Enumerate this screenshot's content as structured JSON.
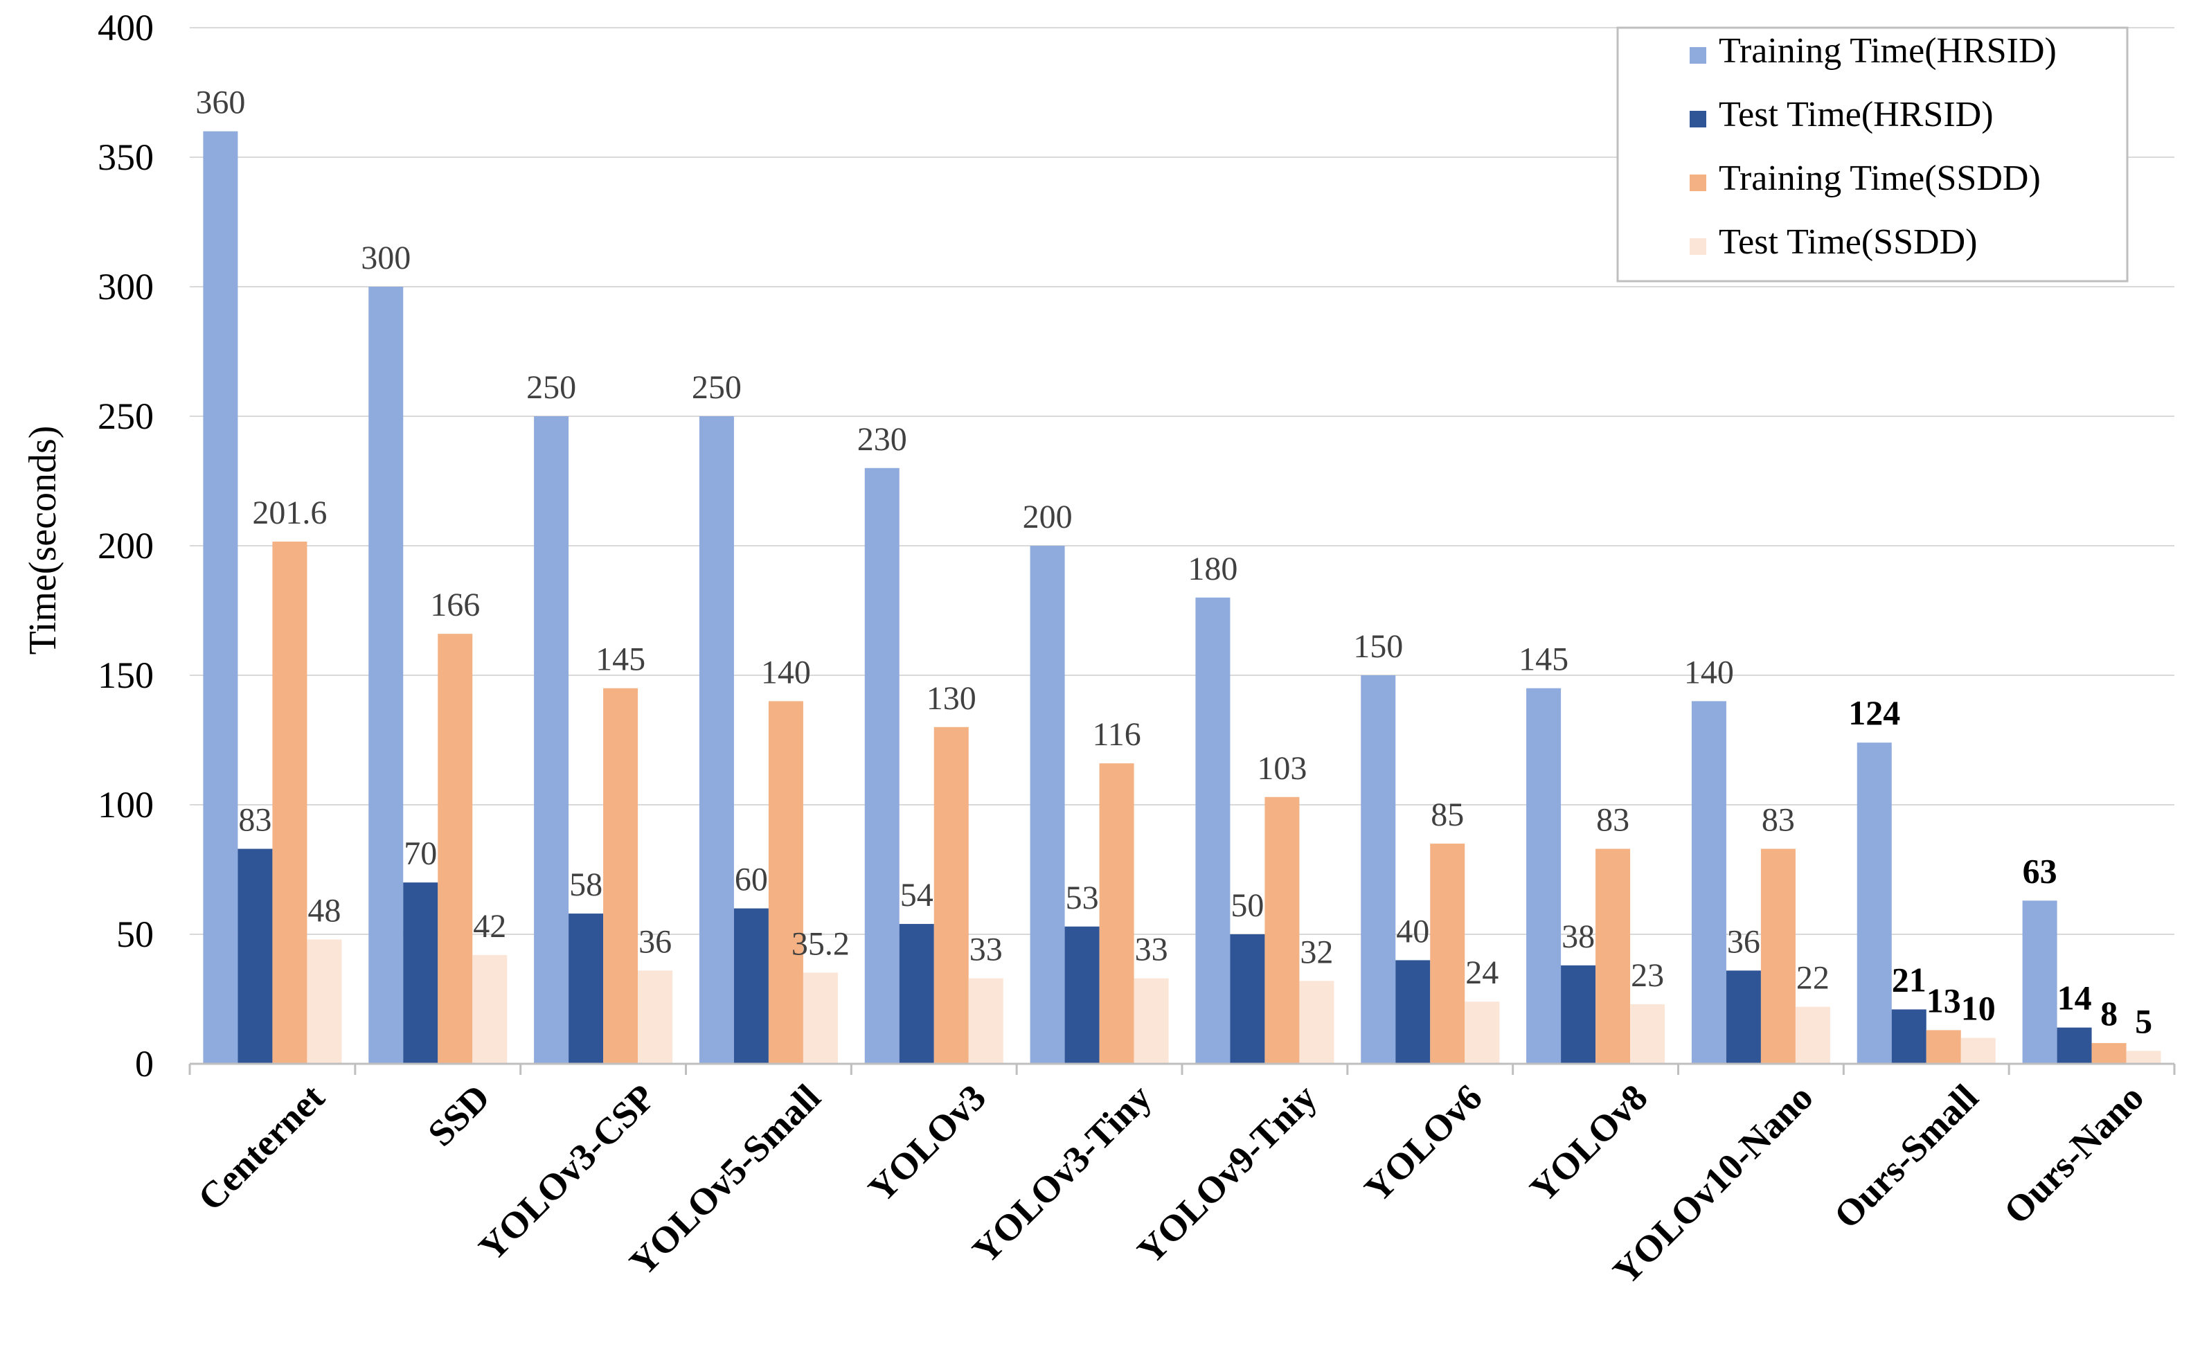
{
  "chart_data": {
    "type": "bar",
    "title": "",
    "xlabel": "",
    "ylabel": "Time(seconds)",
    "ylim": [
      0,
      400
    ],
    "yticks": [
      0,
      50,
      100,
      150,
      200,
      250,
      300,
      350,
      400
    ],
    "grid": true,
    "legend_position": "top-right",
    "categories": [
      "Centernet",
      "SSD",
      "YOLOv3-CSP",
      "YOLOv5-Small",
      "YOLOv3",
      "YOLOv3-Tiny",
      "YOLOv9-Tniy",
      "YOLOv6",
      "YOLOv8",
      "YOLOv10-Nano",
      "Ours-Small",
      "Ours-Nano"
    ],
    "bold_categories": [
      "Ours-Small",
      "Ours-Nano"
    ],
    "series": [
      {
        "name": "Training Time(HRSID)",
        "color": "#8FAADC",
        "values": [
          360,
          300,
          250,
          250,
          230,
          200,
          180,
          150,
          145,
          140,
          124,
          63
        ]
      },
      {
        "name": "Test Time(HRSID)",
        "color": "#2F5597",
        "values": [
          83,
          70,
          58,
          60,
          54,
          53,
          50,
          40,
          38,
          36,
          21,
          14
        ]
      },
      {
        "name": "Training Time(SSDD)",
        "color": "#F4B183",
        "values": [
          201.6,
          166,
          145,
          140,
          130,
          116,
          103,
          85,
          83,
          83,
          13,
          8
        ]
      },
      {
        "name": "Test Time(SSDD)",
        "color": "#FBE5D6",
        "values": [
          48,
          42,
          36,
          35.2,
          33,
          33,
          32,
          24,
          23,
          22,
          10,
          5
        ]
      }
    ]
  },
  "colors": {
    "axis": "#BFBFBF",
    "grid": "#D9D9D9",
    "legend_border": "#BFBFBF"
  }
}
